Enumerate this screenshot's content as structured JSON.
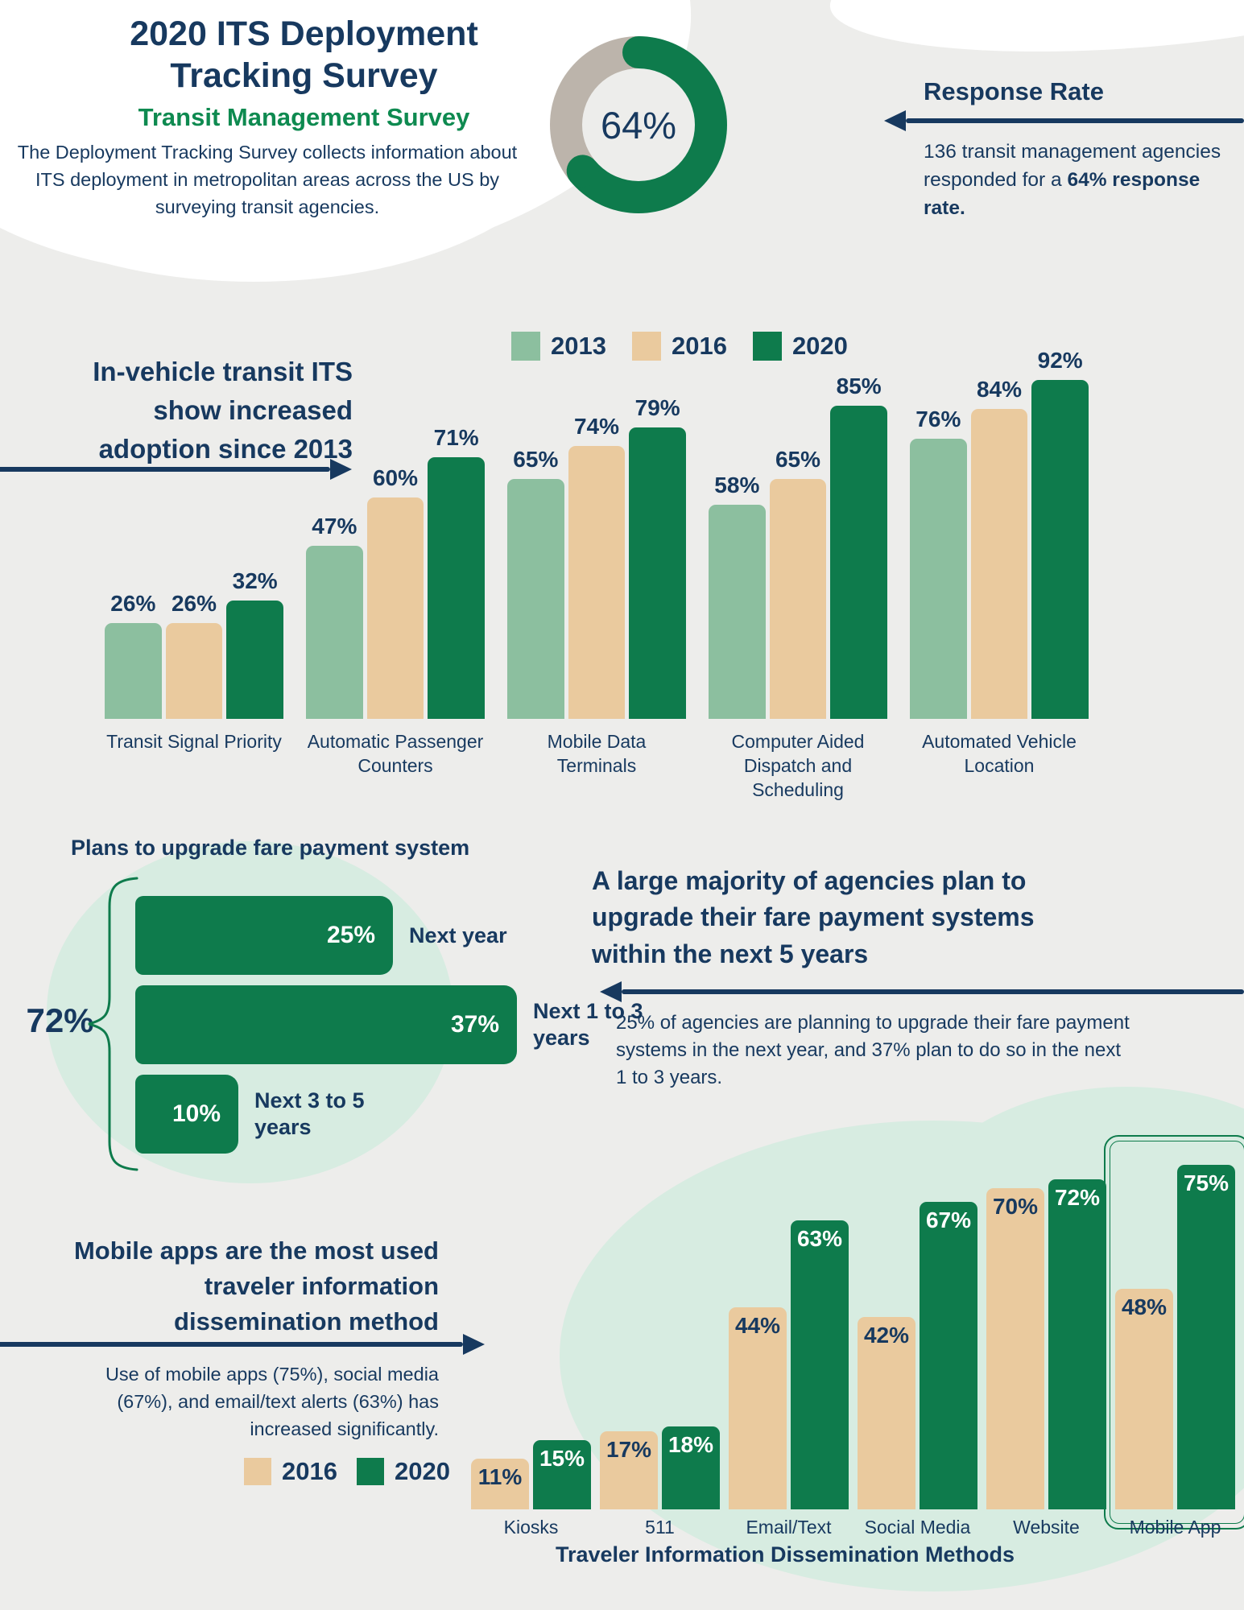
{
  "colors": {
    "navy": "#17395F",
    "green": "#0E7B4C",
    "light_green": "#8CBF9F",
    "tan": "#EACA9E",
    "donut_gray": "#BCB4AB",
    "background": "#EDEDEB",
    "mint_blob": "#D7ECE1",
    "subtitle_green": "#0E8A50",
    "white": "#FFFFFF"
  },
  "header": {
    "title_line1": "2020 ITS Deployment",
    "title_line2": "Tracking Survey",
    "subtitle": "Transit Management Survey",
    "description": "The Deployment Tracking Survey collects information about ITS deployment in metropolitan areas across the US by surveying transit agencies.",
    "response": {
      "heading": "Response Rate",
      "donut_label": "64%",
      "body_normal": "136 transit management agencies responded for a ",
      "body_bold": "64% response rate."
    }
  },
  "adoption": {
    "heading_lines": [
      "In-vehicle transit ITS",
      "show increased",
      "adoption since 2013"
    ]
  },
  "fare": {
    "chart_title": "Plans to upgrade fare payment system",
    "total_label": "72%",
    "heading_lines": [
      "A large majority of agencies plan to",
      "upgrade their fare payment systems",
      "within the next 5 years"
    ],
    "body": "25% of agencies are planning to upgrade their fare payment systems in the next year, and 37% plan to do so in the next 1 to 3 years."
  },
  "dissemination": {
    "heading_lines": [
      "Mobile apps are the most used",
      "traveler information",
      "dissemination method"
    ],
    "body": "Use of mobile apps (75%), social media (67%), and email/text alerts (63%) has increased significantly."
  },
  "chart_data": [
    {
      "type": "pie",
      "title": "Response Rate",
      "value": 64,
      "label": "64%",
      "note": "donut; green = responded 64%, gray = remainder 36%"
    },
    {
      "type": "bar",
      "title": "In-vehicle transit ITS show increased adoption since 2013",
      "categories": [
        "Transit Signal Priority",
        "Automatic Passenger Counters",
        "Mobile Data Terminals",
        "Computer Aided Dispatch and Scheduling",
        "Automated Vehicle Location"
      ],
      "series": [
        {
          "name": "2013",
          "values": [
            26,
            47,
            65,
            58,
            76
          ]
        },
        {
          "name": "2016",
          "values": [
            26,
            60,
            74,
            65,
            84
          ]
        },
        {
          "name": "2020",
          "values": [
            32,
            71,
            79,
            85,
            92
          ]
        }
      ],
      "value_suffix": "%",
      "ylim": [
        0,
        100
      ],
      "grid": false,
      "legend_position": "top"
    },
    {
      "type": "bar",
      "orientation": "horizontal",
      "title": "Plans to upgrade fare payment system",
      "categories": [
        "Next year",
        "Next 1 to 3 years",
        "Next 3 to 5 years"
      ],
      "values": [
        25,
        37,
        10
      ],
      "value_suffix": "%",
      "total_label": "72%",
      "xlim": [
        0,
        40
      ]
    },
    {
      "type": "bar",
      "title": "Traveler Information Dissemination Methods",
      "xlabel": "Traveler Information Dissemination Methods",
      "categories": [
        "Kiosks",
        "511",
        "Email/Text",
        "Social Media",
        "Website",
        "Mobile App"
      ],
      "series": [
        {
          "name": "2016",
          "values": [
            11,
            17,
            44,
            42,
            70,
            48
          ]
        },
        {
          "name": "2020",
          "values": [
            15,
            18,
            63,
            67,
            72,
            75
          ]
        }
      ],
      "value_suffix": "%",
      "ylim": [
        0,
        100
      ],
      "grid": false,
      "highlighted_category": "Mobile App",
      "legend_position": "left"
    }
  ]
}
